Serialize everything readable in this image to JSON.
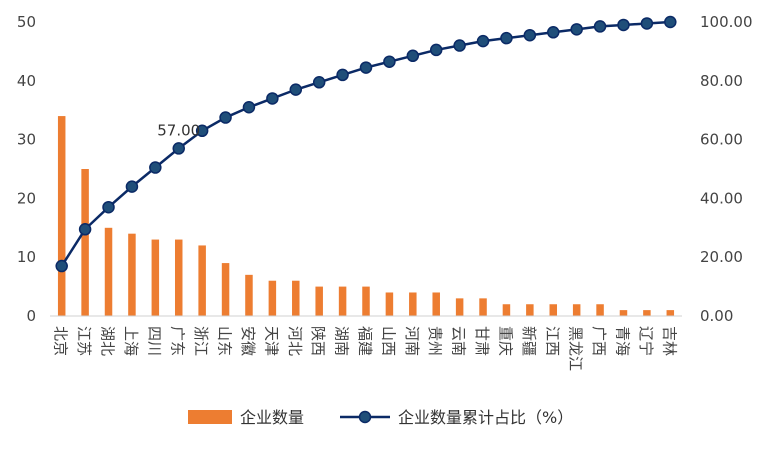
{
  "chart_data": {
    "type": "bar",
    "categories": [
      "北京",
      "江苏",
      "湖北",
      "上海",
      "四川",
      "广东",
      "浙江",
      "山东",
      "安徽",
      "天津",
      "河北",
      "陕西",
      "湖南",
      "福建",
      "山西",
      "河南",
      "贵州",
      "云南",
      "甘肃",
      "重庆",
      "新疆",
      "江西",
      "黑龙江",
      "广西",
      "青海",
      "辽宁",
      "吉林"
    ],
    "series": [
      {
        "name": "企业数量",
        "kind": "bar",
        "axis": "left",
        "color": "#ED7D31",
        "values": [
          34,
          25,
          15,
          14,
          13,
          13,
          12,
          9,
          7,
          6,
          6,
          5,
          5,
          5,
          4,
          4,
          4,
          3,
          3,
          2,
          2,
          2,
          2,
          2,
          1,
          1,
          1
        ]
      },
      {
        "name": "企业数量累计占比（%）",
        "kind": "line",
        "axis": "right",
        "color": "#0B2A66",
        "values": [
          17.0,
          29.5,
          37.0,
          44.0,
          50.5,
          57.0,
          63.0,
          67.5,
          71.0,
          74.0,
          77.0,
          79.5,
          82.0,
          84.5,
          86.5,
          88.5,
          90.5,
          92.0,
          93.5,
          94.5,
          95.5,
          96.5,
          97.5,
          98.5,
          99.0,
          99.5,
          100.0
        ]
      }
    ],
    "ylim_left": [
      0,
      50
    ],
    "yticks_left": [
      "0",
      "10",
      "20",
      "30",
      "40",
      "50"
    ],
    "ylim_right": [
      0,
      100
    ],
    "yticks_right": [
      "0.00",
      "20.00",
      "40.00",
      "60.00",
      "80.00",
      "100.00"
    ],
    "annotations": [
      {
        "category": "广东",
        "text": "57.00"
      }
    ],
    "grid": false,
    "legend_position": "bottom"
  }
}
